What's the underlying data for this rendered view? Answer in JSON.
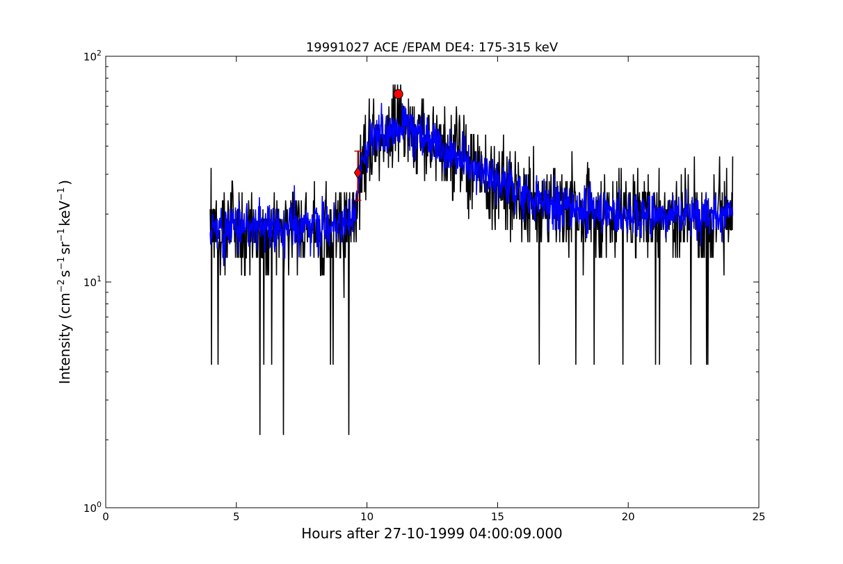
{
  "chart_data": {
    "type": "line",
    "title": "19991027 ACE /EPAM DE4: 175-315 keV",
    "xlabel": "Hours after 27-10-1999 04:00:09.000",
    "ylabel_parts": {
      "prefix": "Intensity (cm",
      "exp1": "−2",
      "s": "s",
      "exp2": "−1",
      "sr": "sr",
      "exp3": "−1",
      "kev": "keV",
      "exp4": "−1",
      "suffix": ")"
    },
    "xlim": [
      0,
      25
    ],
    "ylim": [
      1,
      100
    ],
    "yscale": "log",
    "x_ticks": [
      "0",
      "5",
      "10",
      "15",
      "20",
      "25"
    ],
    "y_ticks": [
      {
        "base": "10",
        "exp": "0"
      },
      {
        "base": "10",
        "exp": "1"
      },
      {
        "base": "10",
        "exp": "2"
      }
    ],
    "series": [
      {
        "style": "raw",
        "color": "#000000",
        "profile": [
          [
            4.0,
            17
          ],
          [
            9.5,
            18
          ],
          [
            10.0,
            40
          ],
          [
            11.2,
            50
          ],
          [
            12.5,
            42
          ],
          [
            14.5,
            30
          ],
          [
            16.5,
            22
          ],
          [
            20.0,
            20
          ],
          [
            24.0,
            20
          ]
        ],
        "noise_levels": [
          4.3,
          6.4,
          8.5,
          10.7,
          12.8,
          15,
          17,
          19,
          21,
          23,
          25,
          28,
          30,
          32,
          34,
          36,
          38,
          40,
          45,
          50,
          55,
          60,
          65,
          70,
          75
        ],
        "dropouts": [
          [
            5.9,
            2.1
          ],
          [
            6.8,
            2.1
          ],
          [
            9.3,
            2.1
          ],
          [
            4.05,
            4.3
          ],
          [
            4.3,
            4.3
          ],
          [
            6.05,
            4.3
          ],
          [
            6.35,
            4.3
          ],
          [
            8.6,
            4.3
          ],
          [
            8.7,
            4.3
          ],
          [
            16.6,
            4.3
          ],
          [
            18.0,
            4.3
          ],
          [
            18.7,
            4.3
          ],
          [
            19.8,
            4.3
          ],
          [
            21.05,
            4.3
          ],
          [
            21.2,
            4.3
          ],
          [
            22.4,
            4.3
          ],
          [
            23.0,
            4.3
          ],
          [
            23.05,
            4.3
          ]
        ]
      },
      {
        "style": "smoothed",
        "color": "#0000ff",
        "profile": [
          [
            4.0,
            17
          ],
          [
            9.5,
            18
          ],
          [
            10.0,
            40
          ],
          [
            11.2,
            50
          ],
          [
            12.5,
            42
          ],
          [
            14.5,
            30
          ],
          [
            16.5,
            22
          ],
          [
            20.0,
            20
          ],
          [
            24.0,
            20
          ]
        ]
      }
    ],
    "markers": [
      {
        "x": 11.2,
        "y": 68,
        "shape": "circle",
        "color": "#ff0000"
      },
      {
        "x": 9.65,
        "y": 30.5,
        "shape": "diamond",
        "color": "#ff0000"
      }
    ],
    "error_bar": {
      "x": 9.65,
      "y_low": 23,
      "y_high": 38,
      "color": "#cc0000"
    },
    "x_range": [
      4.0,
      24.0
    ],
    "n_points": 1200
  }
}
